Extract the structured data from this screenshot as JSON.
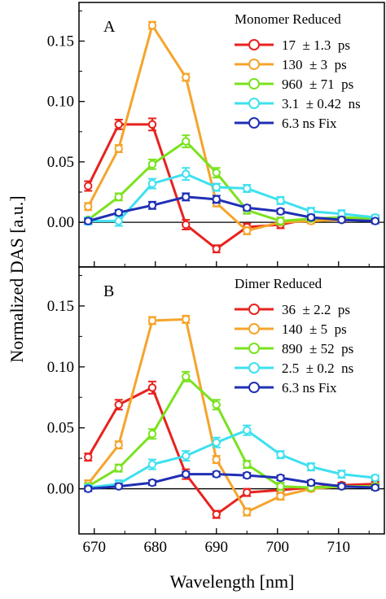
{
  "figure": {
    "ylabel": "Normalized DAS [a.u.]",
    "xlabel": "Wavelength [nm]"
  },
  "chart_data": [
    {
      "type": "line",
      "panel_label": "A",
      "legend_title": "Monomer Reduced",
      "legend_placement": "top-right",
      "grid": false,
      "x": [
        669,
        674,
        679.5,
        685,
        690,
        695,
        700.5,
        705.5,
        710.5,
        716
      ],
      "xlim": [
        667.5,
        717.5
      ],
      "ylim": [
        -0.037,
        0.182
      ],
      "xticks": [
        670,
        680,
        690,
        700,
        710
      ],
      "yticks": [
        0.0,
        0.05,
        0.1,
        0.15
      ],
      "ytick_labels": [
        "0.00",
        "0.05",
        "0.10",
        "0.15"
      ],
      "zero_line": true,
      "series": [
        {
          "name": "17  ± 1.3  ps",
          "color": "#e8221e",
          "values": [
            0.03,
            0.081,
            0.081,
            -0.002,
            -0.022,
            -0.004,
            -0.002,
            0.003,
            0.002,
            0.003
          ],
          "errors": [
            0.004,
            0.004,
            0.005,
            0.004,
            0.003,
            0.003,
            0.003,
            0.002,
            0.002,
            0.002
          ]
        },
        {
          "name": "130  ± 3  ps",
          "color": "#f5a42c",
          "values": [
            0.013,
            0.061,
            0.163,
            0.12,
            0.016,
            -0.007,
            0.0,
            0.001,
            0.002,
            0.002
          ],
          "errors": [
            0.003,
            0.003,
            0.003,
            0.003,
            0.003,
            0.003,
            0.002,
            0.002,
            0.002,
            0.002
          ]
        },
        {
          "name": "960  ± 71  ps",
          "color": "#7ae21f",
          "values": [
            0.002,
            0.021,
            0.048,
            0.067,
            0.041,
            0.01,
            0.001,
            0.003,
            0.004,
            0.003
          ],
          "errors": [
            0.002,
            0.003,
            0.004,
            0.005,
            0.004,
            0.003,
            0.003,
            0.002,
            0.002,
            0.002
          ]
        },
        {
          "name": "3.1  ± 0.42  ns",
          "color": "#3ee0ef",
          "values": [
            0.001,
            0.001,
            0.032,
            0.04,
            0.029,
            0.028,
            0.018,
            0.009,
            0.007,
            0.004
          ],
          "errors": [
            0.003,
            0.004,
            0.004,
            0.005,
            0.003,
            0.003,
            0.003,
            0.003,
            0.003,
            0.002
          ]
        },
        {
          "name": "6.3 ns Fix",
          "color": "#1f2fb4",
          "values": [
            0.001,
            0.008,
            0.014,
            0.021,
            0.019,
            0.012,
            0.009,
            0.004,
            0.002,
            0.001
          ],
          "errors": [
            0.002,
            0.002,
            0.003,
            0.003,
            0.003,
            0.002,
            0.002,
            0.002,
            0.002,
            0.002
          ]
        }
      ]
    },
    {
      "type": "line",
      "panel_label": "B",
      "legend_title": "Dimer Reduced",
      "legend_placement": "top-right",
      "grid": false,
      "x": [
        669,
        674,
        679.5,
        685,
        690,
        695,
        700.5,
        705.5,
        710.5,
        716
      ],
      "xlim": [
        667.5,
        717.5
      ],
      "ylim": [
        -0.037,
        0.182
      ],
      "xticks": [
        670,
        680,
        690,
        700,
        710
      ],
      "yticks": [
        0.0,
        0.05,
        0.1,
        0.15
      ],
      "ytick_labels": [
        "0.00",
        "0.05",
        "0.10",
        "0.15"
      ],
      "zero_line": true,
      "series": [
        {
          "name": "36  ± 2.2  ps",
          "color": "#e8221e",
          "values": [
            0.026,
            0.069,
            0.083,
            0.012,
            -0.021,
            -0.003,
            -0.001,
            0.001,
            0.003,
            0.004
          ],
          "errors": [
            0.003,
            0.004,
            0.005,
            0.004,
            0.003,
            0.003,
            0.003,
            0.002,
            0.002,
            0.002
          ]
        },
        {
          "name": "140  ± 5  ps",
          "color": "#f5a42c",
          "values": [
            0.004,
            0.036,
            0.138,
            0.139,
            0.024,
            -0.019,
            -0.006,
            0.0,
            0.002,
            0.002
          ],
          "errors": [
            0.003,
            0.003,
            0.003,
            0.003,
            0.003,
            0.003,
            0.003,
            0.002,
            0.002,
            0.002
          ]
        },
        {
          "name": "890  ± 52  ps",
          "color": "#7ae21f",
          "values": [
            0.002,
            0.017,
            0.045,
            0.092,
            0.069,
            0.02,
            0.002,
            0.001,
            0.002,
            0.002
          ],
          "errors": [
            0.002,
            0.003,
            0.004,
            0.004,
            0.004,
            0.003,
            0.003,
            0.002,
            0.002,
            0.002
          ]
        },
        {
          "name": "2.5  ± 0.2  ns",
          "color": "#3ee0ef",
          "values": [
            0.001,
            0.004,
            0.02,
            0.027,
            0.038,
            0.048,
            0.028,
            0.018,
            0.012,
            0.009
          ],
          "errors": [
            0.002,
            0.003,
            0.004,
            0.004,
            0.004,
            0.004,
            0.003,
            0.003,
            0.003,
            0.002
          ]
        },
        {
          "name": "6.3 ns Fix",
          "color": "#1f2fb4",
          "values": [
            0.0,
            0.002,
            0.005,
            0.012,
            0.012,
            0.011,
            0.009,
            0.005,
            0.002,
            0.001
          ],
          "errors": [
            0.002,
            0.002,
            0.002,
            0.002,
            0.002,
            0.002,
            0.002,
            0.002,
            0.002,
            0.002
          ]
        }
      ]
    }
  ]
}
